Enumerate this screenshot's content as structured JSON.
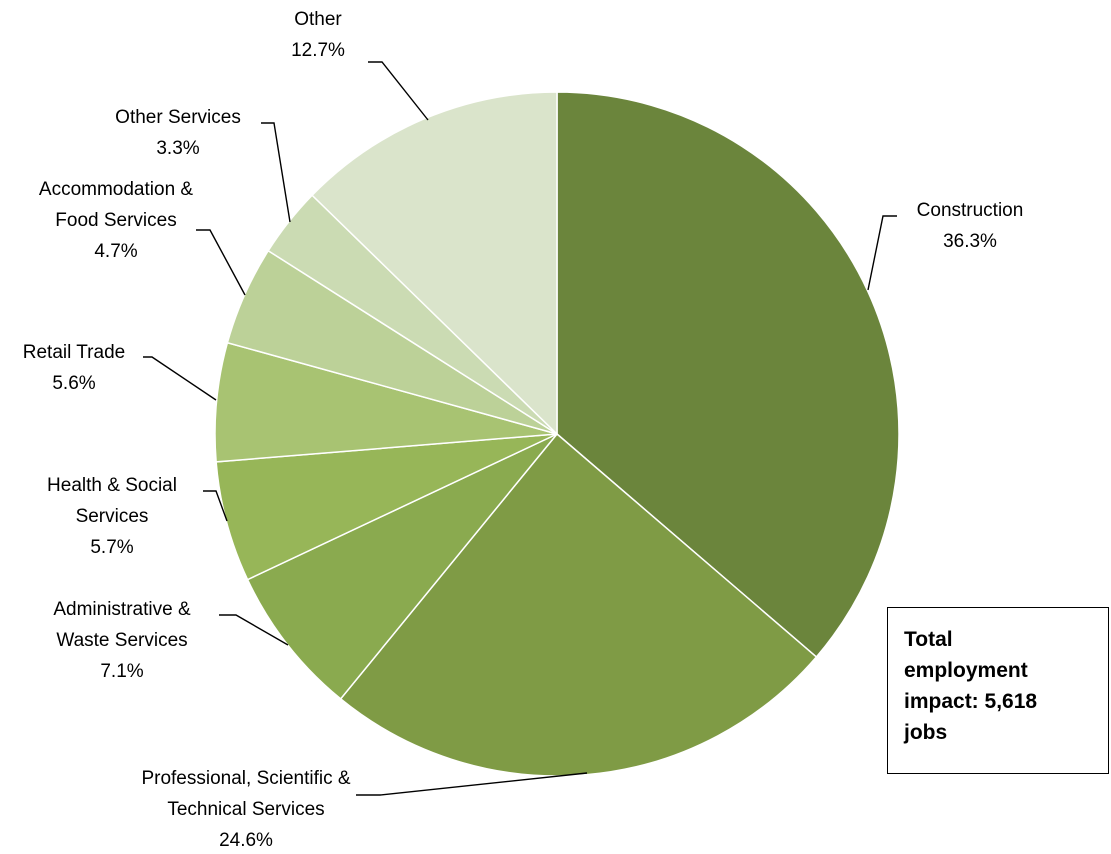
{
  "chart_data": {
    "type": "pie",
    "categories": [
      "Construction",
      "Professional, Scientific & Technical Services",
      "Administrative & Waste Services",
      "Health & Social Services",
      "Retail Trade",
      "Accommodation & Food Services",
      "Other Services",
      "Other"
    ],
    "label_lines": [
      [
        "Construction"
      ],
      [
        "Professional, Scientific &",
        "Technical Services"
      ],
      [
        "Administrative &",
        "Waste Services"
      ],
      [
        "Health & Social",
        "Services"
      ],
      [
        "Retail Trade"
      ],
      [
        "Accommodation &",
        "Food Services"
      ],
      [
        "Other Services"
      ],
      [
        "Other"
      ]
    ],
    "values": [
      36.3,
      24.6,
      7.1,
      5.7,
      5.6,
      4.7,
      3.3,
      12.7
    ],
    "value_labels": [
      "36.3%",
      "24.6%",
      "7.1%",
      "5.7%",
      "5.6%",
      "4.7%",
      "3.3%",
      "12.7%"
    ],
    "colors": [
      "#6b853c",
      "#7f9b45",
      "#8aaa4f",
      "#97b658",
      "#a8c372",
      "#bcd198",
      "#cbdbb3",
      "#dae4cb"
    ],
    "start_angle": "12 o'clock",
    "direction": "clockwise",
    "legend": "none"
  },
  "annotation": {
    "lines": [
      "Total",
      "employment",
      "impact: 5,618",
      "jobs"
    ]
  }
}
